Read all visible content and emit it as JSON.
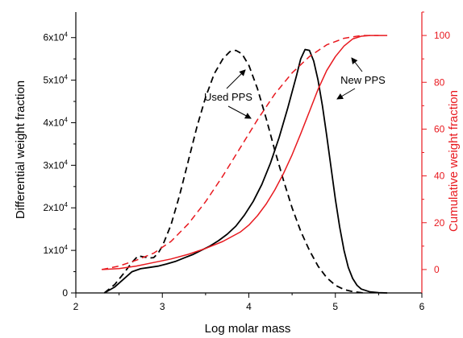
{
  "chart_data": {
    "type": "line",
    "xlabel": "Log molar mass",
    "ylabel_left": "Differential weight fraction",
    "ylabel_right": "Cumulative weight fraction",
    "xlim": [
      2,
      6
    ],
    "ylim_left": [
      0,
      66000
    ],
    "ylim_right": [
      -10,
      110
    ],
    "x_ticks": [
      2,
      3,
      4,
      5,
      6
    ],
    "y_left_ticks": [
      {
        "value": 0,
        "base": "0",
        "exp": ""
      },
      {
        "value": 10000,
        "base": "1x10",
        "exp": "4"
      },
      {
        "value": 20000,
        "base": "2x10",
        "exp": "4"
      },
      {
        "value": 30000,
        "base": "3x10",
        "exp": "4"
      },
      {
        "value": 40000,
        "base": "4x10",
        "exp": "4"
      },
      {
        "value": 50000,
        "base": "5x10",
        "exp": "4"
      },
      {
        "value": 60000,
        "base": "6x10",
        "exp": "4"
      }
    ],
    "y_right_ticks": [
      0,
      20,
      40,
      60,
      80,
      100
    ],
    "colors": {
      "differential": "#000000",
      "cumulative": "#e8191f"
    },
    "series": [
      {
        "axis": "left",
        "style": "solid",
        "points": [
          [
            2.33,
            0
          ],
          [
            2.45,
            1400
          ],
          [
            2.55,
            3200
          ],
          [
            2.65,
            5000
          ],
          [
            2.75,
            5700
          ],
          [
            2.85,
            6000
          ],
          [
            2.95,
            6300
          ],
          [
            3.05,
            6800
          ],
          [
            3.15,
            7400
          ],
          [
            3.25,
            8200
          ],
          [
            3.35,
            9000
          ],
          [
            3.45,
            10000
          ],
          [
            3.55,
            11000
          ],
          [
            3.65,
            12300
          ],
          [
            3.75,
            13800
          ],
          [
            3.85,
            15700
          ],
          [
            3.95,
            18300
          ],
          [
            4.05,
            21500
          ],
          [
            4.15,
            25500
          ],
          [
            4.25,
            30500
          ],
          [
            4.35,
            36500
          ],
          [
            4.45,
            43500
          ],
          [
            4.55,
            51000
          ],
          [
            4.6,
            55000
          ],
          [
            4.65,
            57200
          ],
          [
            4.7,
            57000
          ],
          [
            4.75,
            54500
          ],
          [
            4.8,
            50000
          ],
          [
            4.85,
            44000
          ],
          [
            4.9,
            37000
          ],
          [
            4.95,
            29500
          ],
          [
            5.0,
            22000
          ],
          [
            5.05,
            15500
          ],
          [
            5.1,
            10000
          ],
          [
            5.15,
            6000
          ],
          [
            5.2,
            3400
          ],
          [
            5.25,
            1800
          ],
          [
            5.3,
            900
          ],
          [
            5.4,
            250
          ],
          [
            5.5,
            60
          ],
          [
            5.6,
            0
          ]
        ]
      },
      {
        "axis": "left",
        "style": "dashed",
        "points": [
          [
            2.33,
            0
          ],
          [
            2.45,
            2000
          ],
          [
            2.55,
            4500
          ],
          [
            2.65,
            7200
          ],
          [
            2.72,
            8700
          ],
          [
            2.78,
            8500
          ],
          [
            2.85,
            8200
          ],
          [
            2.9,
            8300
          ],
          [
            2.95,
            9300
          ],
          [
            3.0,
            11000
          ],
          [
            3.1,
            16000
          ],
          [
            3.2,
            23000
          ],
          [
            3.3,
            31000
          ],
          [
            3.4,
            39000
          ],
          [
            3.5,
            46000
          ],
          [
            3.6,
            51500
          ],
          [
            3.7,
            55000
          ],
          [
            3.78,
            56700
          ],
          [
            3.85,
            57000
          ],
          [
            3.92,
            56200
          ],
          [
            4.0,
            53500
          ],
          [
            4.1,
            48000
          ],
          [
            4.2,
            41000
          ],
          [
            4.3,
            33500
          ],
          [
            4.4,
            26500
          ],
          [
            4.5,
            20000
          ],
          [
            4.6,
            14500
          ],
          [
            4.7,
            10000
          ],
          [
            4.8,
            6300
          ],
          [
            4.9,
            3600
          ],
          [
            5.0,
            1800
          ],
          [
            5.1,
            800
          ],
          [
            5.2,
            300
          ],
          [
            5.3,
            80
          ],
          [
            5.35,
            0
          ]
        ]
      },
      {
        "axis": "right",
        "style": "solid",
        "points": [
          [
            2.3,
            0
          ],
          [
            2.5,
            0.4
          ],
          [
            2.7,
            1.5
          ],
          [
            2.9,
            3
          ],
          [
            3.1,
            4.5
          ],
          [
            3.3,
            6.5
          ],
          [
            3.5,
            9
          ],
          [
            3.7,
            12
          ],
          [
            3.9,
            16
          ],
          [
            4.0,
            19
          ],
          [
            4.1,
            23
          ],
          [
            4.2,
            28
          ],
          [
            4.3,
            34
          ],
          [
            4.4,
            41
          ],
          [
            4.5,
            49
          ],
          [
            4.6,
            58
          ],
          [
            4.7,
            67.5
          ],
          [
            4.8,
            77
          ],
          [
            4.9,
            85
          ],
          [
            5.0,
            91
          ],
          [
            5.1,
            95.5
          ],
          [
            5.2,
            98.5
          ],
          [
            5.3,
            99.7
          ],
          [
            5.4,
            100
          ],
          [
            5.6,
            100
          ]
        ]
      },
      {
        "axis": "right",
        "style": "dashed",
        "points": [
          [
            2.3,
            0
          ],
          [
            2.5,
            1.5
          ],
          [
            2.7,
            4
          ],
          [
            2.9,
            7
          ],
          [
            3.1,
            12
          ],
          [
            3.3,
            19.5
          ],
          [
            3.5,
            29
          ],
          [
            3.7,
            40
          ],
          [
            3.9,
            52
          ],
          [
            4.1,
            64
          ],
          [
            4.3,
            75
          ],
          [
            4.5,
            84
          ],
          [
            4.7,
            91
          ],
          [
            4.9,
            96
          ],
          [
            5.1,
            98.8
          ],
          [
            5.3,
            100
          ],
          [
            5.5,
            100
          ]
        ]
      }
    ],
    "annotations": {
      "used": {
        "text": "Used PPS"
      },
      "new": {
        "text": "New PPS"
      }
    }
  }
}
